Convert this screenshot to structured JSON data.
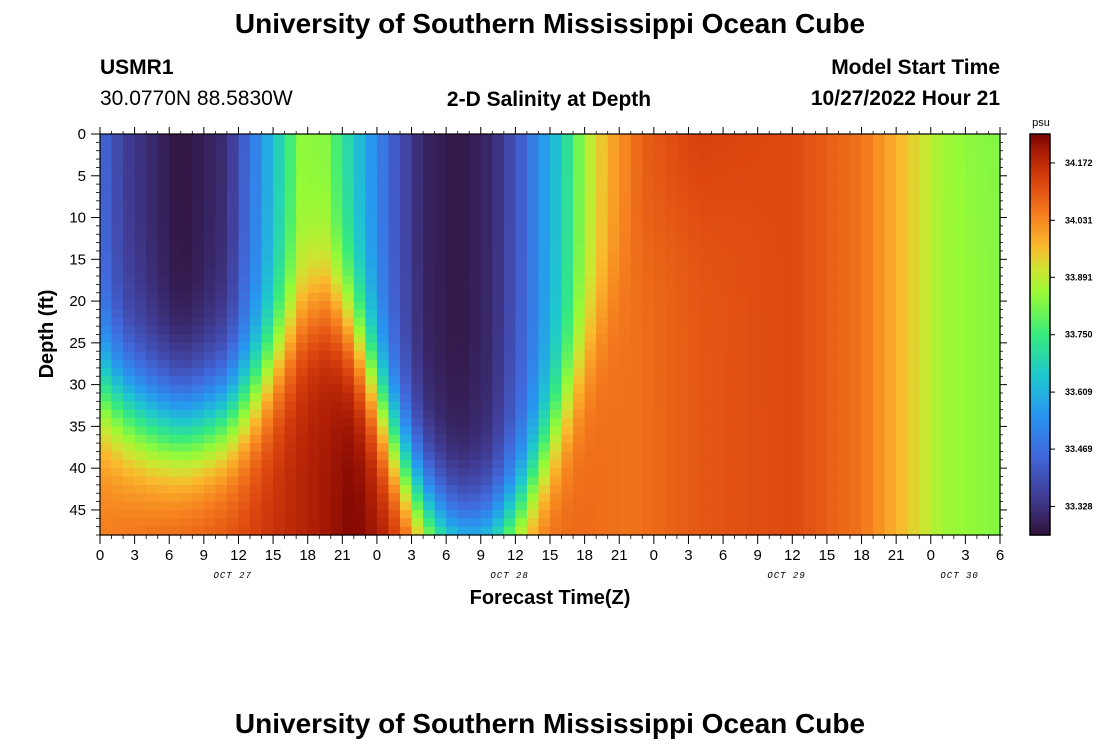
{
  "header": {
    "title": "University of Southern Mississippi Ocean Cube",
    "station_id": "USMR1",
    "station_coords": "30.0770N  88.5830W",
    "model_start_label": "Model Start Time",
    "model_start_value": "10/27/2022 Hour 21"
  },
  "footer": {
    "title": "University of Southern Mississippi Ocean Cube"
  },
  "chart_data": {
    "type": "heatmap",
    "title": "2-D Salinity at Depth",
    "xlabel": "Forecast Time(Z)",
    "ylabel": "Depth (ft)",
    "x_hours": [
      0,
      78
    ],
    "y_depth_ft": [
      0,
      48
    ],
    "x_tick_labels": [
      "0",
      "3",
      "6",
      "9",
      "12",
      "15",
      "18",
      "21",
      "0",
      "3",
      "6",
      "9",
      "12",
      "15",
      "18",
      "21",
      "0",
      "3",
      "6",
      "9",
      "12",
      "15",
      "18",
      "21",
      "0",
      "3",
      "6"
    ],
    "y_tick_labels": [
      "0",
      "5",
      "10",
      "15",
      "20",
      "25",
      "30",
      "35",
      "40",
      "45"
    ],
    "day_labels": [
      {
        "text": "OCT 27",
        "hour": 11.5
      },
      {
        "text": "OCT 28",
        "hour": 35.5
      },
      {
        "text": "OCT 29",
        "hour": 59.5
      },
      {
        "text": "OCT 30",
        "hour": 74.5
      }
    ],
    "colorbar": {
      "unit": "psu",
      "min": 33.258,
      "max": 34.243,
      "tick_labels": [
        "34.172",
        "34.031",
        "33.891",
        "33.750",
        "33.609",
        "33.469",
        "33.328"
      ],
      "tick_values": [
        34.172,
        34.031,
        33.891,
        33.75,
        33.609,
        33.469,
        33.328
      ]
    },
    "grid": false,
    "description_of_field": "Fresher water (~33.3 psu) near surface around Oct 27 06Z and Oct 28 09Z; saltier water (~34.2 psu) at depth near Oct 27 22Z and throughout Oct 29 (~34.1), decreasing to ~33.85 by Oct 30 06Z."
  }
}
